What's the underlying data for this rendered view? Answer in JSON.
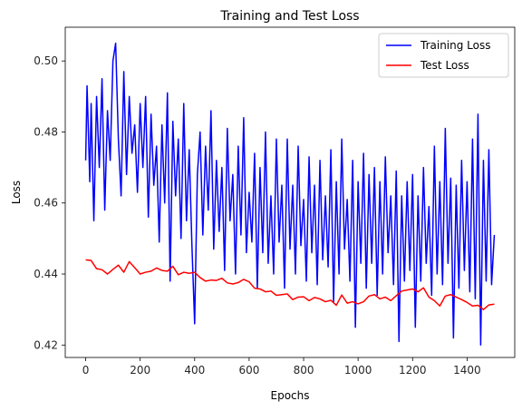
{
  "chart_data": {
    "type": "line",
    "title": "Training and Test Loss",
    "xlabel": "Epochs",
    "ylabel": "Loss",
    "xlim": [
      -75,
      1575
    ],
    "ylim": [
      0.4165,
      0.5095
    ],
    "xticks": [
      0,
      200,
      400,
      600,
      800,
      1000,
      1200,
      1400
    ],
    "xtick_labels": [
      "0",
      "200",
      "400",
      "600",
      "800",
      "1000",
      "1200",
      "1400"
    ],
    "yticks": [
      0.42,
      0.44,
      0.46,
      0.48,
      0.5
    ],
    "ytick_labels": [
      "0.42",
      "0.44",
      "0.46",
      "0.48",
      "0.50"
    ],
    "grid": false,
    "legend_position": "top-right",
    "series": [
      {
        "name": "Training Loss",
        "color": "#0000ff",
        "points": [
          [
            0,
            0.472
          ],
          [
            5,
            0.493
          ],
          [
            10,
            0.48
          ],
          [
            15,
            0.466
          ],
          [
            20,
            0.488
          ],
          [
            30,
            0.455
          ],
          [
            40,
            0.49
          ],
          [
            50,
            0.47
          ],
          [
            60,
            0.495
          ],
          [
            70,
            0.458
          ],
          [
            80,
            0.486
          ],
          [
            90,
            0.472
          ],
          [
            100,
            0.5
          ],
          [
            110,
            0.505
          ],
          [
            120,
            0.478
          ],
          [
            130,
            0.462
          ],
          [
            140,
            0.497
          ],
          [
            150,
            0.468
          ],
          [
            160,
            0.49
          ],
          [
            170,
            0.474
          ],
          [
            180,
            0.482
          ],
          [
            190,
            0.463
          ],
          [
            200,
            0.488
          ],
          [
            210,
            0.47
          ],
          [
            220,
            0.49
          ],
          [
            230,
            0.456
          ],
          [
            240,
            0.485
          ],
          [
            250,
            0.465
          ],
          [
            260,
            0.476
          ],
          [
            270,
            0.449
          ],
          [
            280,
            0.482
          ],
          [
            290,
            0.46
          ],
          [
            300,
            0.491
          ],
          [
            310,
            0.438
          ],
          [
            320,
            0.483
          ],
          [
            330,
            0.462
          ],
          [
            340,
            0.478
          ],
          [
            350,
            0.45
          ],
          [
            360,
            0.488
          ],
          [
            370,
            0.455
          ],
          [
            380,
            0.475
          ],
          [
            390,
            0.448
          ],
          [
            400,
            0.426
          ],
          [
            410,
            0.468
          ],
          [
            420,
            0.48
          ],
          [
            430,
            0.451
          ],
          [
            440,
            0.476
          ],
          [
            450,
            0.458
          ],
          [
            460,
            0.486
          ],
          [
            470,
            0.447
          ],
          [
            480,
            0.472
          ],
          [
            490,
            0.452
          ],
          [
            500,
            0.47
          ],
          [
            510,
            0.441
          ],
          [
            520,
            0.481
          ],
          [
            530,
            0.455
          ],
          [
            540,
            0.468
          ],
          [
            550,
            0.44
          ],
          [
            560,
            0.476
          ],
          [
            570,
            0.451
          ],
          [
            580,
            0.484
          ],
          [
            590,
            0.446
          ],
          [
            600,
            0.463
          ],
          [
            610,
            0.449
          ],
          [
            620,
            0.474
          ],
          [
            630,
            0.436
          ],
          [
            640,
            0.47
          ],
          [
            650,
            0.446
          ],
          [
            660,
            0.48
          ],
          [
            670,
            0.443
          ],
          [
            680,
            0.462
          ],
          [
            690,
            0.44
          ],
          [
            700,
            0.478
          ],
          [
            710,
            0.449
          ],
          [
            720,
            0.465
          ],
          [
            730,
            0.436
          ],
          [
            740,
            0.478
          ],
          [
            750,
            0.447
          ],
          [
            760,
            0.465
          ],
          [
            770,
            0.44
          ],
          [
            780,
            0.476
          ],
          [
            790,
            0.448
          ],
          [
            800,
            0.461
          ],
          [
            810,
            0.438
          ],
          [
            820,
            0.473
          ],
          [
            830,
            0.446
          ],
          [
            840,
            0.465
          ],
          [
            850,
            0.437
          ],
          [
            860,
            0.472
          ],
          [
            870,
            0.444
          ],
          [
            880,
            0.462
          ],
          [
            890,
            0.442
          ],
          [
            900,
            0.475
          ],
          [
            910,
            0.432
          ],
          [
            920,
            0.466
          ],
          [
            930,
            0.44
          ],
          [
            940,
            0.478
          ],
          [
            950,
            0.447
          ],
          [
            960,
            0.461
          ],
          [
            970,
            0.438
          ],
          [
            980,
            0.472
          ],
          [
            990,
            0.425
          ],
          [
            1000,
            0.466
          ],
          [
            1010,
            0.443
          ],
          [
            1020,
            0.474
          ],
          [
            1030,
            0.436
          ],
          [
            1040,
            0.468
          ],
          [
            1050,
            0.443
          ],
          [
            1060,
            0.47
          ],
          [
            1070,
            0.434
          ],
          [
            1080,
            0.466
          ],
          [
            1090,
            0.44
          ],
          [
            1100,
            0.473
          ],
          [
            1110,
            0.446
          ],
          [
            1120,
            0.462
          ],
          [
            1130,
            0.437
          ],
          [
            1140,
            0.469
          ],
          [
            1150,
            0.421
          ],
          [
            1160,
            0.462
          ],
          [
            1170,
            0.438
          ],
          [
            1180,
            0.466
          ],
          [
            1190,
            0.441
          ],
          [
            1200,
            0.468
          ],
          [
            1210,
            0.425
          ],
          [
            1220,
            0.462
          ],
          [
            1230,
            0.438
          ],
          [
            1240,
            0.47
          ],
          [
            1250,
            0.443
          ],
          [
            1260,
            0.459
          ],
          [
            1270,
            0.434
          ],
          [
            1280,
            0.476
          ],
          [
            1290,
            0.44
          ],
          [
            1300,
            0.466
          ],
          [
            1310,
            0.437
          ],
          [
            1320,
            0.481
          ],
          [
            1330,
            0.443
          ],
          [
            1340,
            0.467
          ],
          [
            1350,
            0.422
          ],
          [
            1360,
            0.465
          ],
          [
            1370,
            0.436
          ],
          [
            1380,
            0.472
          ],
          [
            1390,
            0.441
          ],
          [
            1400,
            0.466
          ],
          [
            1410,
            0.435
          ],
          [
            1420,
            0.478
          ],
          [
            1430,
            0.433
          ],
          [
            1440,
            0.485
          ],
          [
            1450,
            0.42
          ],
          [
            1460,
            0.472
          ],
          [
            1470,
            0.438
          ],
          [
            1480,
            0.475
          ],
          [
            1490,
            0.437
          ],
          [
            1500,
            0.451
          ]
        ]
      },
      {
        "name": "Test Loss",
        "color": "#ff0000",
        "points": [
          [
            0,
            0.444
          ],
          [
            20,
            0.4438
          ],
          [
            40,
            0.4415
          ],
          [
            60,
            0.4412
          ],
          [
            80,
            0.44
          ],
          [
            100,
            0.4413
          ],
          [
            120,
            0.4425
          ],
          [
            140,
            0.4405
          ],
          [
            160,
            0.4435
          ],
          [
            180,
            0.4418
          ],
          [
            200,
            0.44
          ],
          [
            220,
            0.4405
          ],
          [
            240,
            0.4408
          ],
          [
            260,
            0.4417
          ],
          [
            280,
            0.441
          ],
          [
            300,
            0.4408
          ],
          [
            320,
            0.4422
          ],
          [
            340,
            0.4398
          ],
          [
            360,
            0.4405
          ],
          [
            380,
            0.4402
          ],
          [
            400,
            0.4405
          ],
          [
            420,
            0.439
          ],
          [
            440,
            0.438
          ],
          [
            460,
            0.4383
          ],
          [
            480,
            0.4382
          ],
          [
            500,
            0.4388
          ],
          [
            520,
            0.4375
          ],
          [
            540,
            0.4372
          ],
          [
            560,
            0.4376
          ],
          [
            580,
            0.4385
          ],
          [
            600,
            0.4378
          ],
          [
            620,
            0.436
          ],
          [
            640,
            0.4358
          ],
          [
            660,
            0.435
          ],
          [
            680,
            0.4352
          ],
          [
            700,
            0.434
          ],
          [
            720,
            0.4342
          ],
          [
            740,
            0.4344
          ],
          [
            760,
            0.4328
          ],
          [
            780,
            0.4335
          ],
          [
            800,
            0.4336
          ],
          [
            820,
            0.4325
          ],
          [
            840,
            0.4334
          ],
          [
            860,
            0.433
          ],
          [
            880,
            0.4322
          ],
          [
            900,
            0.4326
          ],
          [
            920,
            0.4312
          ],
          [
            940,
            0.4341
          ],
          [
            960,
            0.4318
          ],
          [
            980,
            0.4322
          ],
          [
            1000,
            0.4316
          ],
          [
            1020,
            0.4322
          ],
          [
            1040,
            0.4338
          ],
          [
            1060,
            0.4342
          ],
          [
            1080,
            0.433
          ],
          [
            1100,
            0.4335
          ],
          [
            1120,
            0.4325
          ],
          [
            1140,
            0.4339
          ],
          [
            1160,
            0.4352
          ],
          [
            1180,
            0.4355
          ],
          [
            1200,
            0.4358
          ],
          [
            1220,
            0.435
          ],
          [
            1240,
            0.4361
          ],
          [
            1260,
            0.4335
          ],
          [
            1280,
            0.4325
          ],
          [
            1300,
            0.431
          ],
          [
            1320,
            0.4338
          ],
          [
            1340,
            0.4342
          ],
          [
            1360,
            0.4335
          ],
          [
            1380,
            0.4328
          ],
          [
            1400,
            0.432
          ],
          [
            1420,
            0.431
          ],
          [
            1440,
            0.4312
          ],
          [
            1460,
            0.43
          ],
          [
            1480,
            0.4313
          ],
          [
            1500,
            0.4315
          ]
        ]
      }
    ]
  }
}
